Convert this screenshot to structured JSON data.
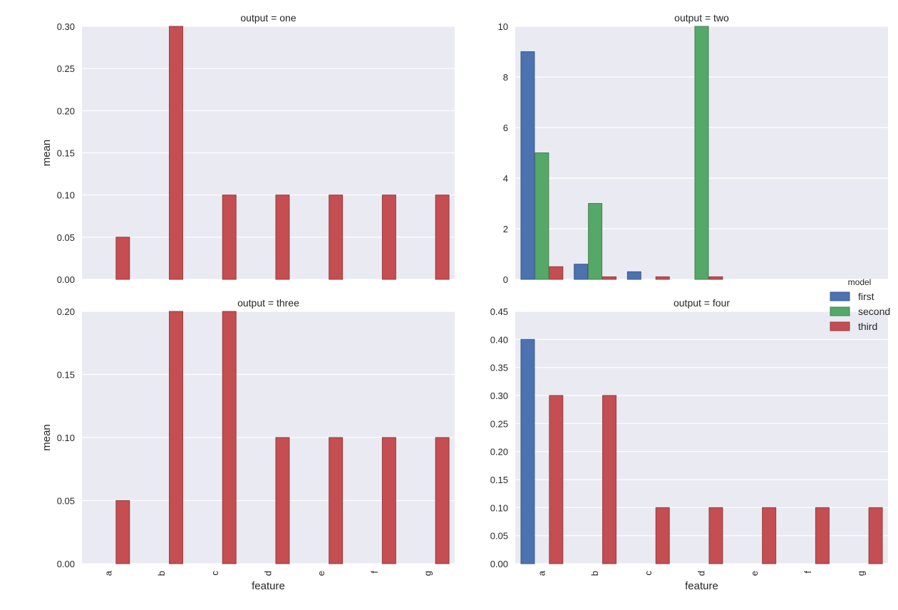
{
  "chart_data": [
    {
      "type": "bar",
      "title": "output = one",
      "xlabel": "",
      "ylabel": "mean",
      "ylim": [
        0,
        0.3
      ],
      "yticks": [
        "0.00",
        "0.05",
        "0.10",
        "0.15",
        "0.20",
        "0.25",
        "0.30"
      ],
      "categories": [
        "a",
        "b",
        "c",
        "d",
        "e",
        "f",
        "g"
      ],
      "show_xticklabels": false,
      "series": [
        {
          "name": "first",
          "values": [
            0,
            0,
            0,
            0,
            0,
            0,
            0
          ]
        },
        {
          "name": "second",
          "values": [
            null,
            null,
            null,
            null,
            null,
            null,
            null
          ]
        },
        {
          "name": "third",
          "values": [
            0.05,
            0.3,
            0.1,
            0.1,
            0.1,
            0.1,
            0.1
          ]
        }
      ]
    },
    {
      "type": "bar",
      "title": "output = two",
      "xlabel": "",
      "ylabel": "",
      "ylim": [
        0,
        10
      ],
      "yticks": [
        "0",
        "2",
        "4",
        "6",
        "8",
        "10"
      ],
      "categories": [
        "a",
        "b",
        "c",
        "d",
        "e",
        "f",
        "g"
      ],
      "show_xticklabels": false,
      "series": [
        {
          "name": "first",
          "values": [
            9,
            0.6,
            0.3,
            0,
            0,
            0,
            0
          ]
        },
        {
          "name": "second",
          "values": [
            5,
            3,
            null,
            10,
            0,
            0,
            0
          ]
        },
        {
          "name": "third",
          "values": [
            0.5,
            0.1,
            0.1,
            0.1,
            0,
            0,
            0
          ]
        }
      ]
    },
    {
      "type": "bar",
      "title": "output = three",
      "xlabel": "feature",
      "ylabel": "mean",
      "ylim": [
        0,
        0.2
      ],
      "yticks": [
        "0.00",
        "0.05",
        "0.10",
        "0.15",
        "0.20"
      ],
      "categories": [
        "a",
        "b",
        "c",
        "d",
        "e",
        "f",
        "g"
      ],
      "show_xticklabels": true,
      "series": [
        {
          "name": "first",
          "values": [
            0,
            0,
            0,
            0,
            0,
            0,
            0
          ]
        },
        {
          "name": "second",
          "values": [
            null,
            null,
            null,
            null,
            null,
            null,
            null
          ]
        },
        {
          "name": "third",
          "values": [
            0.05,
            0.2,
            0.2,
            0.1,
            0.1,
            0.1,
            0.1
          ]
        }
      ]
    },
    {
      "type": "bar",
      "title": "output = four",
      "xlabel": "feature",
      "ylabel": "",
      "ylim": [
        0,
        0.45
      ],
      "yticks": [
        "0.00",
        "0.05",
        "0.10",
        "0.15",
        "0.20",
        "0.25",
        "0.30",
        "0.35",
        "0.40",
        "0.45"
      ],
      "categories": [
        "a",
        "b",
        "c",
        "d",
        "e",
        "f",
        "g"
      ],
      "show_xticklabels": true,
      "series": [
        {
          "name": "first",
          "values": [
            0.4,
            0,
            0,
            0,
            0,
            0,
            0
          ]
        },
        {
          "name": "second",
          "values": [
            null,
            null,
            null,
            null,
            null,
            null,
            null
          ]
        },
        {
          "name": "third",
          "values": [
            0.3,
            0.3,
            0.1,
            0.1,
            0.1,
            0.1,
            0.1
          ]
        }
      ]
    }
  ],
  "legend": {
    "title": "model",
    "placement": "right",
    "entries": [
      {
        "name": "first",
        "color": "#4c72b0"
      },
      {
        "name": "second",
        "color": "#55a868"
      },
      {
        "name": "third",
        "color": "#c44e52"
      }
    ]
  },
  "style": {
    "background": "#eaeaf2",
    "grid": true,
    "grid_color": "#ffffff"
  }
}
